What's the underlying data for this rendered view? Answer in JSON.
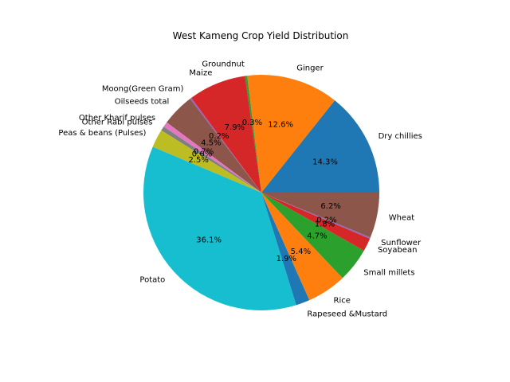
{
  "chart_data": {
    "type": "pie",
    "title": "West Kameng Crop Yield Distribution",
    "start_angle_deg": 0,
    "direction": "counterclockwise",
    "slices": [
      {
        "label": "Dry chillies",
        "pct": "14.3%",
        "value": 14.3,
        "color": "#1f77b4"
      },
      {
        "label": "Ginger",
        "pct": "12.6%",
        "value": 12.6,
        "color": "#ff7f0e"
      },
      {
        "label": "Groundnut",
        "pct": "0.3%",
        "value": 0.3,
        "color": "#2ca02c"
      },
      {
        "label": "Maize",
        "pct": "7.9%",
        "value": 7.9,
        "color": "#d62728"
      },
      {
        "label": "Moong(Green Gram)",
        "pct": "0.2%",
        "value": 0.2,
        "color": "#9467bd"
      },
      {
        "label": "Oilseeds total",
        "pct": "4.5%",
        "value": 4.5,
        "color": "#8c564b"
      },
      {
        "label": "Other Kharif pulses",
        "pct": "0.7%",
        "value": 0.7,
        "color": "#e377c2"
      },
      {
        "label": "Other Rabi pulses",
        "pct": "0.6%",
        "value": 0.6,
        "color": "#7f7f7f"
      },
      {
        "label": "Peas & beans (Pulses)",
        "pct": "2.5%",
        "value": 2.5,
        "color": "#bcbd22"
      },
      {
        "label": "Potato",
        "pct": "36.1%",
        "value": 36.1,
        "color": "#17becf"
      },
      {
        "label": "Rapeseed &Mustard",
        "pct": "1.9%",
        "value": 1.9,
        "color": "#1f77b4"
      },
      {
        "label": "Rice",
        "pct": "5.4%",
        "value": 5.4,
        "color": "#ff7f0e"
      },
      {
        "label": "Small millets",
        "pct": "4.7%",
        "value": 4.7,
        "color": "#2ca02c"
      },
      {
        "label": "Soyabean",
        "pct": "1.8%",
        "value": 1.8,
        "color": "#d62728"
      },
      {
        "label": "Sunflower",
        "pct": "0.2%",
        "value": 0.2,
        "color": "#9467bd"
      },
      {
        "label": "Wheat",
        "pct": "6.2%",
        "value": 6.2,
        "color": "#8c564b"
      }
    ]
  }
}
